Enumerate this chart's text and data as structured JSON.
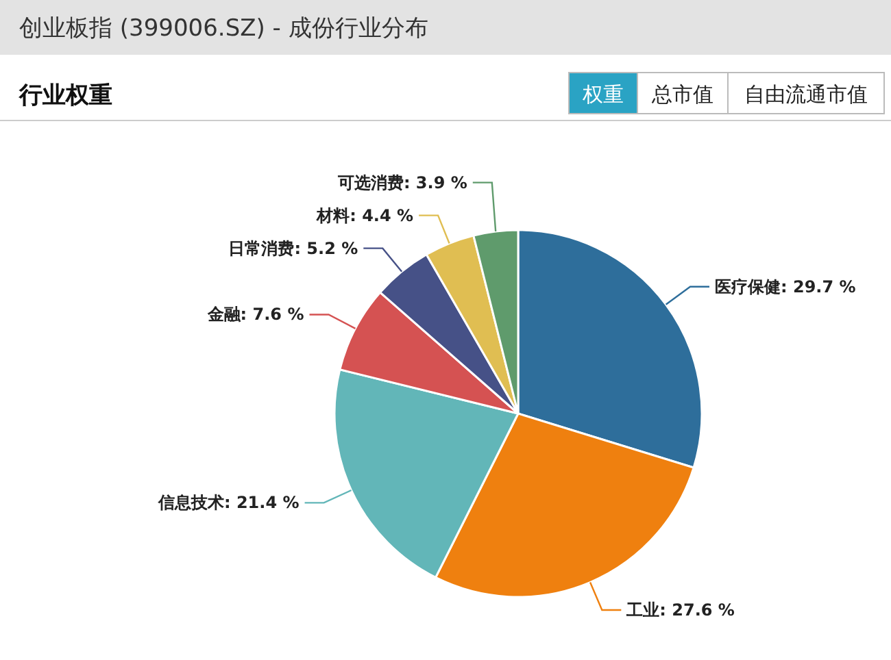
{
  "chart_data": {
    "type": "pie",
    "title": "创业板指 (399006.SZ) - 成份行业分布",
    "subtitle": "行业权重",
    "annotations": [
      "权重",
      "总市值",
      "自由流通市值"
    ],
    "categories": [
      "医疗保健",
      "工业",
      "信息技术",
      "金融",
      "日常消费",
      "材料",
      "可选消费"
    ],
    "values": [
      29.7,
      27.6,
      21.4,
      7.6,
      5.2,
      4.4,
      3.9
    ],
    "value_labels": [
      "29.7 %",
      "27.6 %",
      "21.4 %",
      "7.6 %",
      "5.2 %",
      "4.4 %",
      "3.9 %"
    ],
    "colors": [
      "#2e6e9b",
      "#ef800f",
      "#62b6b8",
      "#d55252",
      "#465187",
      "#e0be52",
      "#5f9b6c"
    ],
    "legend": false
  }
}
